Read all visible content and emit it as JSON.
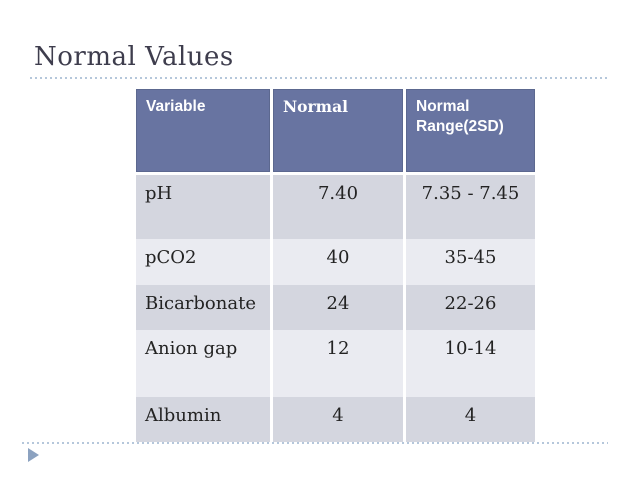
{
  "slide": {
    "title": "Normal Values",
    "table": {
      "headers": {
        "variable": "Variable",
        "normal": "Normal",
        "range": "Normal Range(2SD)"
      },
      "rows": [
        {
          "variable": "pH",
          "normal": "7.40",
          "range": "7.35 - 7.45"
        },
        {
          "variable": "pCO2",
          "normal": "40",
          "range": "35-45"
        },
        {
          "variable": "Bicarbonate",
          "normal": "24",
          "range": "22-26"
        },
        {
          "variable": "Anion gap",
          "normal": "12",
          "range": "10-14"
        },
        {
          "variable": "Albumin",
          "normal": "4",
          "range": "4"
        }
      ]
    },
    "icons": {
      "footer_marker": "triangle-right-icon"
    }
  },
  "colors": {
    "header_bg": "#6874a1",
    "header_text": "#ffffff",
    "row_dark": "#d4d6df",
    "row_light": "#eaebf1",
    "body_text": "#232323",
    "title_text": "#3e3d4d",
    "dotted_line": "#b5c7db",
    "triangle": "#8ca2c0"
  }
}
